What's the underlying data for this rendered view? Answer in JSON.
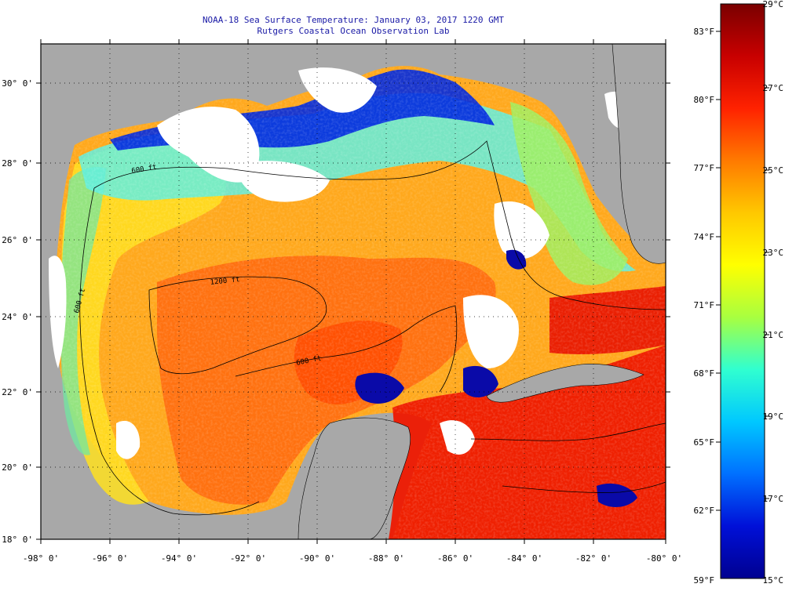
{
  "header": {
    "title_line1": "NOAA-18 Sea Surface Temperature:  January 03, 2017 1220 GMT",
    "title_line2": "Rutgers Coastal Ocean Observation Lab"
  },
  "map": {
    "lon_labels": [
      "-98° 0'",
      "-96° 0'",
      "-94° 0'",
      "-92° 0'",
      "-90° 0'",
      "-88° 0'",
      "-86° 0'",
      "-84° 0'",
      "-82° 0'",
      "-80° 0'"
    ],
    "lat_labels": [
      "30° 0'",
      "28° 0'",
      "26° 0'",
      "24° 0'",
      "22° 0'",
      "20° 0'",
      "18° 0'"
    ],
    "contour_labels": [
      "600 ft",
      "1200 ft",
      "600 ft",
      "600 ft"
    ],
    "colors": {
      "land": "#a8a8a8",
      "cloud": "#ffffff",
      "frame": "#000000"
    }
  },
  "colorbar": {
    "fahrenheit": [
      "83°F",
      "80°F",
      "77°F",
      "74°F",
      "71°F",
      "68°F",
      "65°F",
      "62°F",
      "59°F"
    ],
    "celsius": [
      "29°C",
      "27°C",
      "25°C",
      "23°C",
      "21°C",
      "19°C",
      "17°C",
      "15°C"
    ],
    "range_c": [
      15,
      29
    ],
    "gradient": [
      "#7a0000",
      "#c80000",
      "#ff2200",
      "#ff7a00",
      "#ffc800",
      "#ffff00",
      "#a8ff40",
      "#30ffd0",
      "#00c8ff",
      "#0070ff",
      "#0010d8",
      "#000090"
    ]
  }
}
